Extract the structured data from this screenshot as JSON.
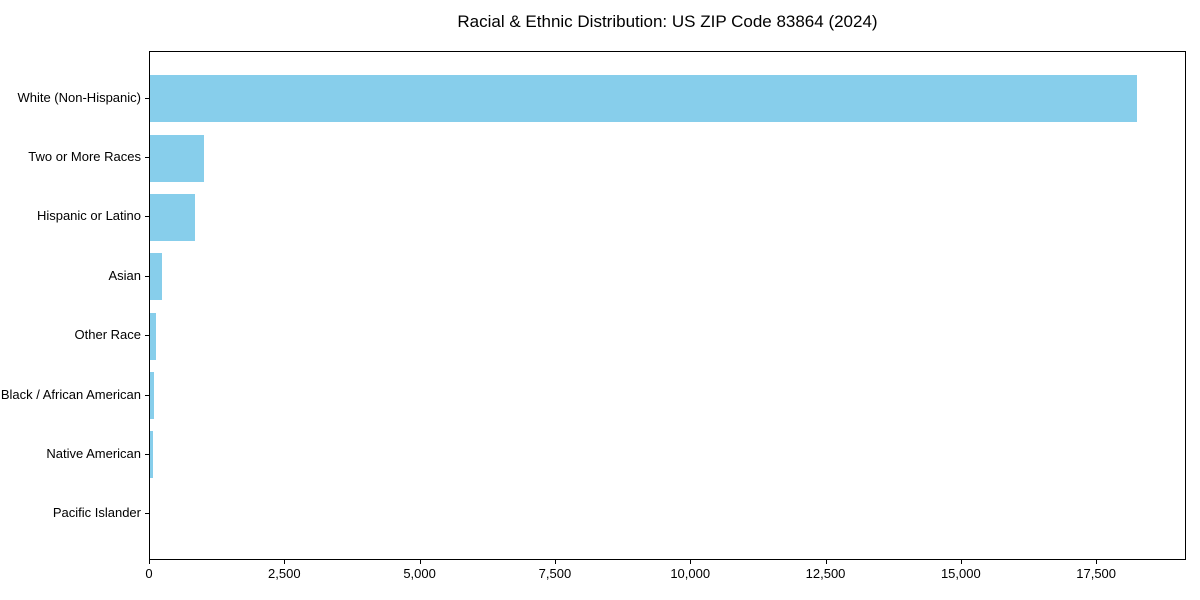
{
  "chart_data": {
    "type": "bar",
    "orientation": "horizontal",
    "title": "Racial & Ethnic Distribution: US ZIP Code 83864 (2024)",
    "categories": [
      "White (Non-Hispanic)",
      "Two or More Races",
      "Hispanic or Latino",
      "Asian",
      "Other Race",
      "Black / African American",
      "Native American",
      "Pacific Islander"
    ],
    "values": [
      18230,
      1000,
      830,
      215,
      110,
      70,
      50,
      0
    ],
    "xlabel": "",
    "ylabel": "",
    "xlim": [
      0,
      19160
    ],
    "xticks": [
      0,
      2500,
      5000,
      7500,
      10000,
      12500,
      15000,
      17500
    ],
    "xtick_labels": [
      "0",
      "2,500",
      "5,000",
      "7,500",
      "10,000",
      "12,500",
      "15,000",
      "17,500"
    ],
    "bar_color": "#87CEEB",
    "spine_color": "#000000",
    "text_color": "#000000",
    "grid": false,
    "legend": null
  }
}
